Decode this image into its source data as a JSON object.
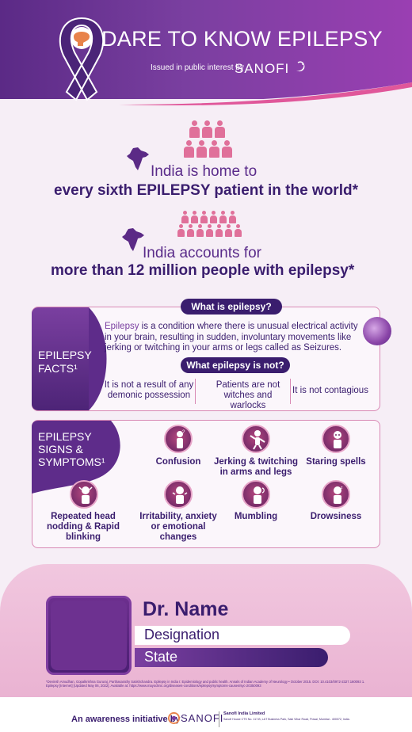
{
  "header": {
    "title": "DARE TO KNOW EPILEPSY",
    "issued_by": "Issued in public interest by",
    "brand": "SANOFI",
    "accent_color": "#7a3fa0"
  },
  "stats": [
    {
      "line1": "India is home to",
      "line2": "every sixth EPILEPSY patient in the world*"
    },
    {
      "line1": "India accounts for",
      "line2": "more than 12 million people with epilepsy*"
    }
  ],
  "facts": {
    "tab_label": "EPILEPSY FACTS¹",
    "what_is_title": "What is epilepsy?",
    "what_is_keyword": "Epilepsy",
    "what_is_text": " is a condition where there is unusual electrical activity in your brain, resulting in sudden, involuntary movements like jerking or twitching in your arms or legs called as Seizures.",
    "what_not_title": "What epilepsy is not?",
    "not_items": [
      "It is not a result of any demonic possession",
      "Patients are not witches and warlocks",
      "It is not contagious"
    ]
  },
  "signs": {
    "tab_label": "EPILEPSY SIGNS & SYMPTOMS¹",
    "items": [
      {
        "label": "Confusion",
        "icon": "confusion-icon"
      },
      {
        "label": "Jerking & twitching in arms and legs",
        "icon": "jerking-icon"
      },
      {
        "label": "Staring spells",
        "icon": "staring-icon"
      },
      {
        "label": "Repeated head nodding & Rapid blinking",
        "icon": "head-nodding-icon"
      },
      {
        "label": "Irritability, anxiety or emotional changes",
        "icon": "irritability-icon"
      },
      {
        "label": "Mumbling",
        "icon": "mumbling-icon"
      },
      {
        "label": "Drowsiness",
        "icon": "drowsiness-icon"
      }
    ]
  },
  "doctor": {
    "name": "Dr. Name",
    "designation": "Designation",
    "state": "State"
  },
  "references": "*Devinsh Amudhan, Gopalkrishna Gururaj, Parthasarathy Satishchandra. Epilepsy in India I: Epidemiology and public health. Annals of Indian Academy of Neurology • October 2015. DOI: 10.4103/0972-2327.160093 1. Epilepsy [Internet] [Updated May 06, 2022]. Available at: https://www.mayoclinic.org/diseases-conditions/epilepsy/symptoms-causes/syc-20350093",
  "footer": {
    "initiative": "An awareness initiative by",
    "brand": "SANOFI",
    "company": "Sanofi India Limited",
    "address": "Sanofi House CTS No. 117-B, L&T Business Park, Saki Vihar Road, Powai, Mumbai - 400072, India."
  }
}
